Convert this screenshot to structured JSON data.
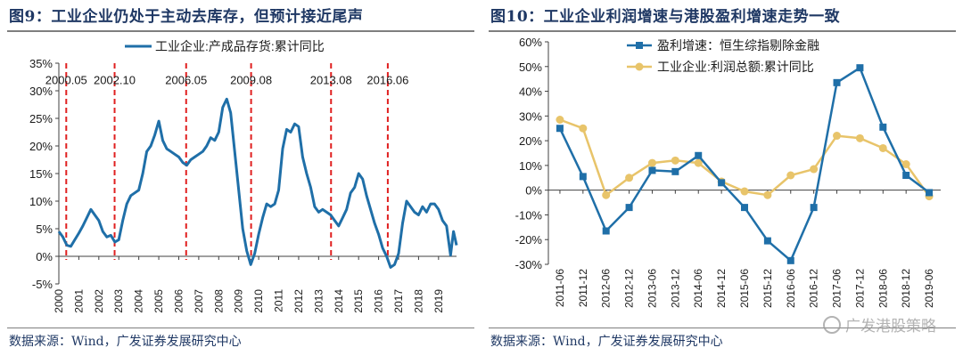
{
  "left": {
    "title": "图9：工业企业仍处于主动去库存，但预计接近尾声",
    "source": "数据来源：Wind，广发证券发展研究中心"
  },
  "right": {
    "title": "图10：工业企业利润增速与港股盈利增速走势一致",
    "source": "数据来源：Wind，广发证券发展研究中心"
  },
  "watermark": "广发港股策略",
  "colors": {
    "blue": "#1f6fa8",
    "yellow": "#e8c46a",
    "red": "#e02020",
    "title": "#1f3864"
  },
  "chart_data": [
    {
      "type": "line",
      "title": "",
      "xlabel": "",
      "ylabel": "",
      "ylim": [
        -5,
        35
      ],
      "xlim": [
        2000,
        2019.9
      ],
      "y_ticks": [
        "-5%",
        "0%",
        "5%",
        "10%",
        "15%",
        "20%",
        "25%",
        "30%",
        "35%"
      ],
      "y_tick_values": [
        -5,
        0,
        5,
        10,
        15,
        20,
        25,
        30,
        35
      ],
      "x_ticks": [
        "2000",
        "2001",
        "2002",
        "2003",
        "2004",
        "2005",
        "2006",
        "2007",
        "2008",
        "2009",
        "2010",
        "2011",
        "2012",
        "2013",
        "2014",
        "2015",
        "2016",
        "2017",
        "2018",
        "2019"
      ],
      "grid": false,
      "legend_position": "top-center",
      "series": [
        {
          "name": "工业企业:产成品存货:累计同比",
          "color": "#1f6fa8",
          "x": [
            2000.0,
            2000.2,
            2000.4,
            2000.6,
            2000.8,
            2001.0,
            2001.2,
            2001.4,
            2001.6,
            2001.8,
            2002.0,
            2002.2,
            2002.4,
            2002.6,
            2002.8,
            2003.0,
            2003.2,
            2003.4,
            2003.6,
            2003.8,
            2004.0,
            2004.2,
            2004.4,
            2004.6,
            2004.8,
            2005.0,
            2005.2,
            2005.4,
            2005.6,
            2005.8,
            2006.0,
            2006.2,
            2006.4,
            2006.6,
            2006.8,
            2007.0,
            2007.2,
            2007.4,
            2007.6,
            2007.8,
            2008.0,
            2008.2,
            2008.4,
            2008.6,
            2008.8,
            2009.0,
            2009.2,
            2009.4,
            2009.6,
            2009.8,
            2010.0,
            2010.2,
            2010.4,
            2010.6,
            2010.8,
            2011.0,
            2011.2,
            2011.4,
            2011.6,
            2011.8,
            2012.0,
            2012.2,
            2012.4,
            2012.6,
            2012.8,
            2013.0,
            2013.2,
            2013.4,
            2013.6,
            2013.8,
            2014.0,
            2014.2,
            2014.4,
            2014.6,
            2014.8,
            2015.0,
            2015.2,
            2015.4,
            2015.6,
            2015.8,
            2016.0,
            2016.2,
            2016.4,
            2016.6,
            2016.8,
            2017.0,
            2017.2,
            2017.4,
            2017.6,
            2017.8,
            2018.0,
            2018.2,
            2018.4,
            2018.6,
            2018.8,
            2019.0,
            2019.2,
            2019.4,
            2019.6,
            2019.75,
            2019.9
          ],
          "y": [
            4.5,
            3.5,
            2.0,
            1.8,
            3.0,
            4.2,
            5.5,
            7.0,
            8.5,
            7.5,
            6.5,
            4.5,
            3.5,
            3.8,
            2.6,
            3.0,
            6.5,
            9.5,
            11.0,
            11.5,
            12.0,
            15.0,
            19.0,
            20.0,
            22.0,
            24.5,
            21.0,
            19.5,
            19.0,
            18.5,
            18.0,
            17.0,
            16.5,
            17.5,
            18.0,
            18.5,
            19.0,
            20.0,
            21.5,
            21.0,
            22.5,
            27.0,
            28.5,
            26.0,
            19.0,
            12.0,
            5.0,
            1.0,
            -1.5,
            0.5,
            4.0,
            7.0,
            9.5,
            9.0,
            9.5,
            12.0,
            19.5,
            23.0,
            22.5,
            24.0,
            23.5,
            18.0,
            15.0,
            12.5,
            9.0,
            8.0,
            8.5,
            8.0,
            7.5,
            6.5,
            5.5,
            7.0,
            8.5,
            11.5,
            12.5,
            15.0,
            14.0,
            11.0,
            8.5,
            6.0,
            4.0,
            1.5,
            0.0,
            -2.0,
            -1.5,
            0.5,
            6.0,
            10.0,
            9.0,
            8.0,
            7.5,
            9.0,
            8.0,
            9.5,
            9.5,
            8.5,
            6.5,
            5.5,
            0.2,
            4.5,
            2.0
          ]
        }
      ],
      "annotations": [
        {
          "label": "2000.05",
          "x": 2000.37
        },
        {
          "label": "2002.10",
          "x": 2002.79
        },
        {
          "label": "2006.05",
          "x": 2006.37
        },
        {
          "label": "2009.08",
          "x": 2009.62
        },
        {
          "label": "2013.08",
          "x": 2013.62
        },
        {
          "label": "2016.06",
          "x": 2016.46
        }
      ]
    },
    {
      "type": "line",
      "title": "",
      "xlabel": "",
      "ylabel": "",
      "ylim": [
        -30,
        60
      ],
      "y_ticks": [
        "-30%",
        "-20%",
        "-10%",
        "0%",
        "10%",
        "20%",
        "30%",
        "40%",
        "50%",
        "60%"
      ],
      "y_tick_values": [
        -30,
        -20,
        -10,
        0,
        10,
        20,
        30,
        40,
        50,
        60
      ],
      "categories": [
        "2011-06",
        "2011-12",
        "2012-06",
        "2012-12",
        "2013-06",
        "2013-12",
        "2014-06",
        "2014-12",
        "2015-06",
        "2015-12",
        "2016-06",
        "2016-12",
        "2017-06",
        "2017-12",
        "2018-06",
        "2018-12",
        "2019-06"
      ],
      "grid": false,
      "legend_position": "top-left",
      "series": [
        {
          "name": "盈利增速：恒生综指剔除金融",
          "color": "#1f6fa8",
          "marker": "square",
          "values": [
            25,
            5.5,
            -16.5,
            -7,
            8,
            7.5,
            14,
            3,
            -7,
            -20.5,
            -28.5,
            -7,
            43.5,
            49.5,
            25.5,
            6,
            -1
          ]
        },
        {
          "name": "工业企业:利润总额:累计同比",
          "color": "#e8c46a",
          "marker": "circle",
          "values": [
            28.5,
            25,
            -2,
            5,
            11,
            12,
            11,
            3.5,
            -0.5,
            -2,
            6,
            8.5,
            22,
            21,
            17,
            10.5,
            -2.5
          ]
        }
      ]
    }
  ]
}
